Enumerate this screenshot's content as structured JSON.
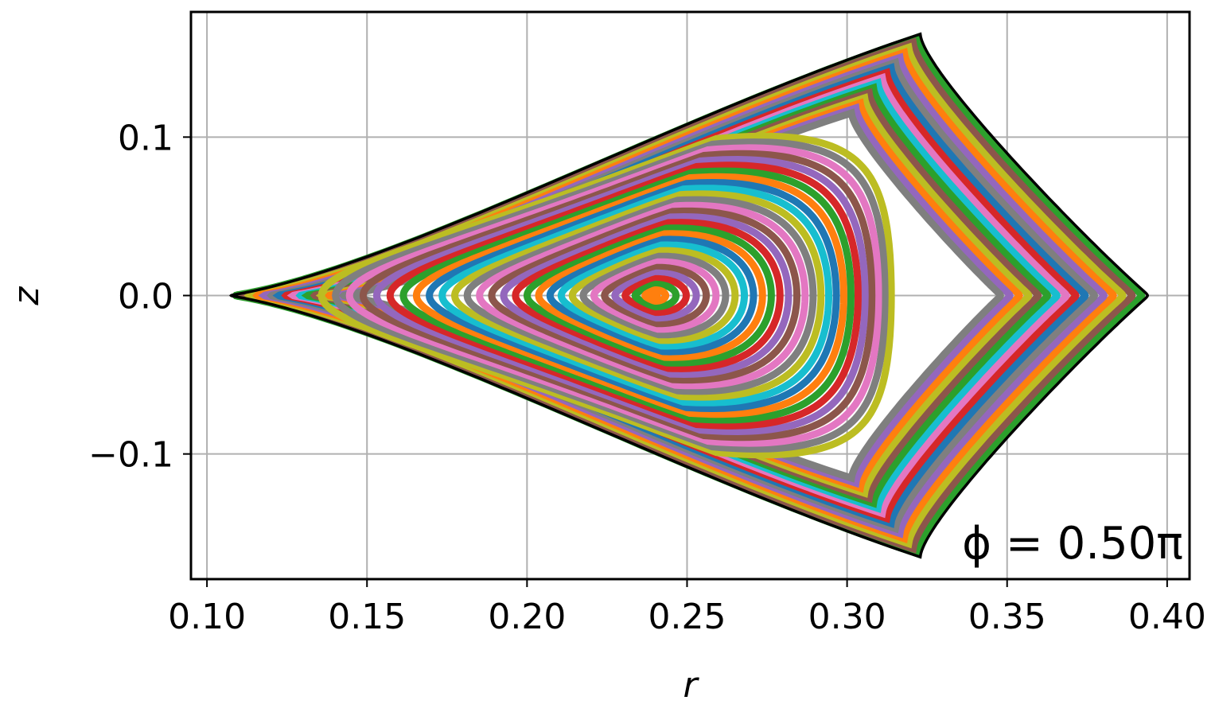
{
  "chart_data": {
    "type": "scatter",
    "description_kind": "poincare",
    "xlabel": "r",
    "ylabel": "z",
    "xlim": [
      0.095,
      0.407
    ],
    "ylim": [
      -0.179,
      0.179
    ],
    "xticks": [
      0.1,
      0.15,
      0.2,
      0.25,
      0.3,
      0.35,
      0.4
    ],
    "xtick_labels": [
      "0.10",
      "0.15",
      "0.20",
      "0.25",
      "0.30",
      "0.35",
      "0.40"
    ],
    "yticks": [
      0.1,
      0.0,
      -0.1
    ],
    "ytick_labels": [
      "0.1",
      "0.0",
      "−0.1"
    ],
    "grid": true,
    "annotation": "ϕ = 0.50π",
    "annotation_position": "bottom-right",
    "magnetic_axis": {
      "r": 0.24,
      "z": 0.0
    },
    "inner_boundary": {
      "r_min": 0.155,
      "r_max": 0.333,
      "z_max": 0.099
    },
    "outer_boundary": {
      "r_min": 0.109,
      "r_max": 0.392,
      "r_top": 0.322,
      "z_max": 0.163
    },
    "island_gap": {
      "r_min": 0.145,
      "r_max": 0.345
    },
    "inner_surface_count": 28,
    "outer_surface_count": 16,
    "series_colors": [
      "#1f77b4",
      "#ff7f0e",
      "#2ca02c",
      "#d62728",
      "#9467bd",
      "#8c564b",
      "#e377c2",
      "#7f7f7f",
      "#bcbd22",
      "#17becf"
    ],
    "boundary_color": "#000000"
  }
}
